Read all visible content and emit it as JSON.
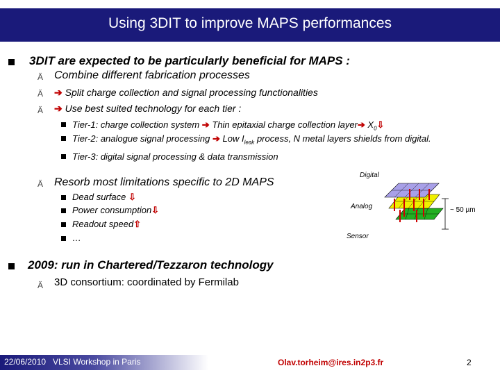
{
  "title": "Using 3DIT to improve MAPS performances",
  "bullets": {
    "main1": "3DIT are expected to be particularly beneficial for MAPS :",
    "sub1": "Combine different fabrication processes",
    "sub2": "Split charge collection and signal processing functionalities",
    "sub3": "Use best suited technology for each tier :",
    "tier1_a": "Tier-1: charge collection system",
    "tier1_b": "Thin epitaxial charge collection layer",
    "tier1_x": "X",
    "tier1_sub": "0",
    "tier2_a": "Tier-2: analogue signal processing",
    "tier2_b": "Low I",
    "tier2_sub": "leak",
    "tier2_c": "process, N metal layers shields from digital.",
    "tier3": "Tier-3: digital signal processing & data transmission",
    "sub4": "Resorb most limitations specific to 2D MAPS",
    "lim1": "Dead surface",
    "lim2": "Power consumption",
    "lim3": "Readout speed",
    "lim4": "…",
    "main2": "2009: run in Chartered/Tezzaron technology",
    "sub5": "3D consortium: coordinated by Fermilab"
  },
  "diagram": {
    "digital": "Digital",
    "analog": "Analog",
    "sensor": "Sensor",
    "thickness": "~ 50 µm"
  },
  "footer": {
    "date": "22/06/2010",
    "event": "VLSI Workshop in Paris",
    "email": "Olav.torheim@ires.in2p3.fr",
    "page": "2"
  },
  "colors": {
    "title_bar": "#1a1a7a",
    "arrow": "#c00000",
    "digital_layer": "#a8a0e8",
    "analog_layer": "#f0f000",
    "sensor_layer": "#22b022"
  }
}
